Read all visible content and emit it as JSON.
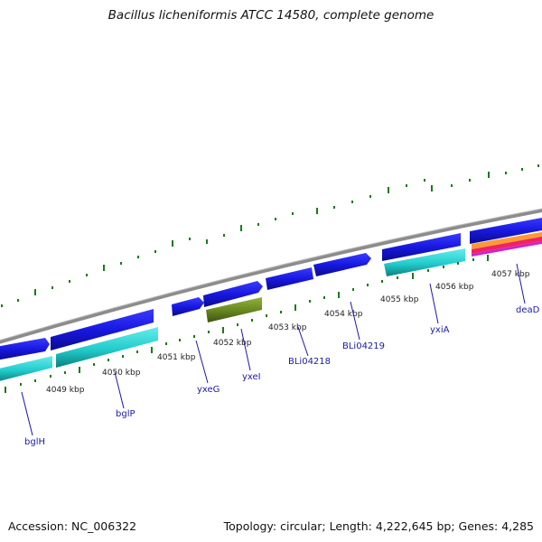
{
  "title": "Bacillus licheniformis ATCC 14580, complete genome",
  "footer": {
    "accession": "Accession: NC_006322",
    "summary": "Topology: circular; Length: 4,222,645 bp; Genes: 4,285"
  },
  "kbp_labels": [
    "4049 kbp",
    "4050 kbp",
    "4051 kbp",
    "4052 kbp",
    "4053 kbp",
    "4054 kbp",
    "4055 kbp",
    "4056 kbp",
    "4057 kbp"
  ],
  "gene_labels": [
    "bglH",
    "bglP",
    "yxeG",
    "yxeI",
    "BLi04218",
    "BLi04219",
    "yxiA",
    "deaD"
  ],
  "colors": {
    "backbone": "#8c8c8c",
    "cds_forward": "#1818e0",
    "cds_reverse": "#2ad4d4",
    "cds_other": "#6a8a22",
    "rna_band": [
      "#ff9933",
      "#ee2266",
      "#cc22cc"
    ],
    "ticks": "#1a7a1a",
    "labels": "#1a1aa8"
  }
}
